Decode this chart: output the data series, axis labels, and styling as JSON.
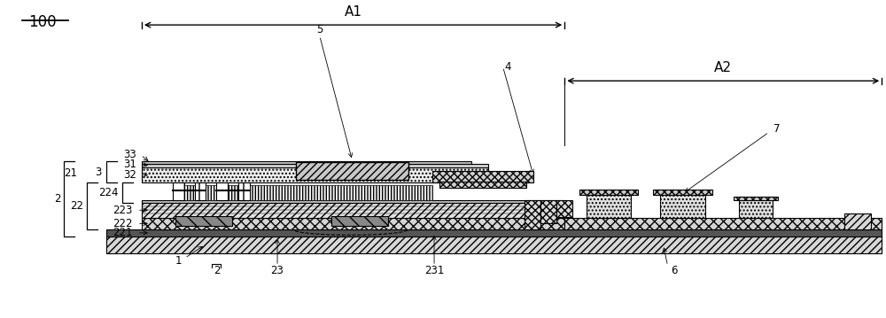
{
  "fig_width": 10.0,
  "fig_height": 3.59,
  "dpi": 100,
  "bg_color": "#ffffff",
  "label_fontsize": 8.5,
  "dim_label_fontsize": 11,
  "main_label": "100",
  "A1_label": "A1",
  "A2_label": "A2",
  "colors": {
    "white": "#ffffff",
    "black": "#000000",
    "light_gray": "#e8e8e8",
    "mid_gray": "#c0c0c0",
    "dark_gray": "#808080",
    "very_dark": "#404040"
  }
}
